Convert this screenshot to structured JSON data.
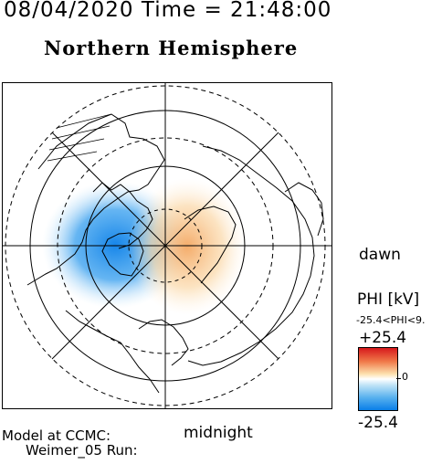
{
  "header": {
    "title_line": "08/04/2020 Time = 21:48:00",
    "hemisphere": "Northern Hemisphere"
  },
  "map": {
    "projection": "polar",
    "dawn_label": "dawn",
    "midnight_label": "midnight",
    "colors": {
      "positive_cell": "#f3a35a",
      "negative_cell": "#0a7fe8",
      "coastline": "#000000"
    }
  },
  "legend": {
    "phi_label": "PHI [kV]",
    "range_text": "-25.4<PHI<9.",
    "max_label": "+25.4",
    "zero_label": "0",
    "min_label": "-25.4",
    "colors": {
      "max": "#d7191c",
      "zero": "#ffffff",
      "min": "#0a7fe8"
    }
  },
  "footer": {
    "model_line1": "Model at CCMC:",
    "model_line2": "Weimer_05 Run:"
  }
}
